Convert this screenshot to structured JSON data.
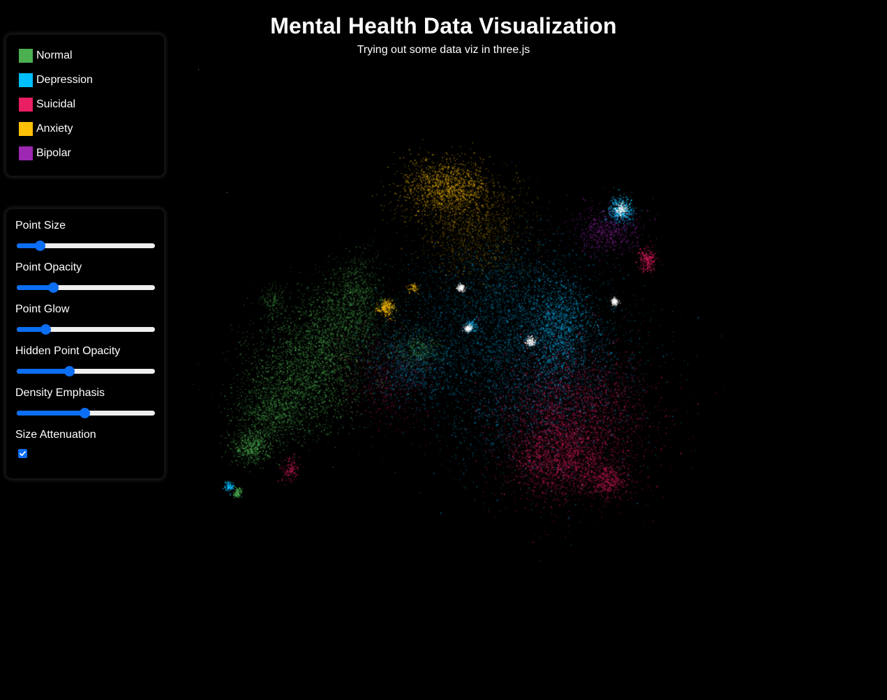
{
  "header": {
    "title": "Mental Health Data Visualization",
    "subtitle": "Trying out some data viz in three.js"
  },
  "legend": {
    "items": [
      {
        "label": "Normal",
        "color": "#4caf50"
      },
      {
        "label": "Depression",
        "color": "#00bfff"
      },
      {
        "label": "Suicidal",
        "color": "#e91e63"
      },
      {
        "label": "Anxiety",
        "color": "#ffc107"
      },
      {
        "label": "Bipolar",
        "color": "#9c27b0"
      }
    ]
  },
  "controls": {
    "point_size": {
      "label": "Point Size",
      "value": 0.14
    },
    "point_opacity": {
      "label": "Point Opacity",
      "value": 0.24
    },
    "point_glow": {
      "label": "Point Glow",
      "value": 0.18
    },
    "hidden_point_opacity": {
      "label": "Hidden Point Opacity",
      "value": 0.37
    },
    "density_emphasis": {
      "label": "Density Emphasis",
      "value": 0.49
    },
    "size_attenuation": {
      "label": "Size Attenuation",
      "checked": true
    }
  },
  "accent_color": "#0b6ef3"
}
